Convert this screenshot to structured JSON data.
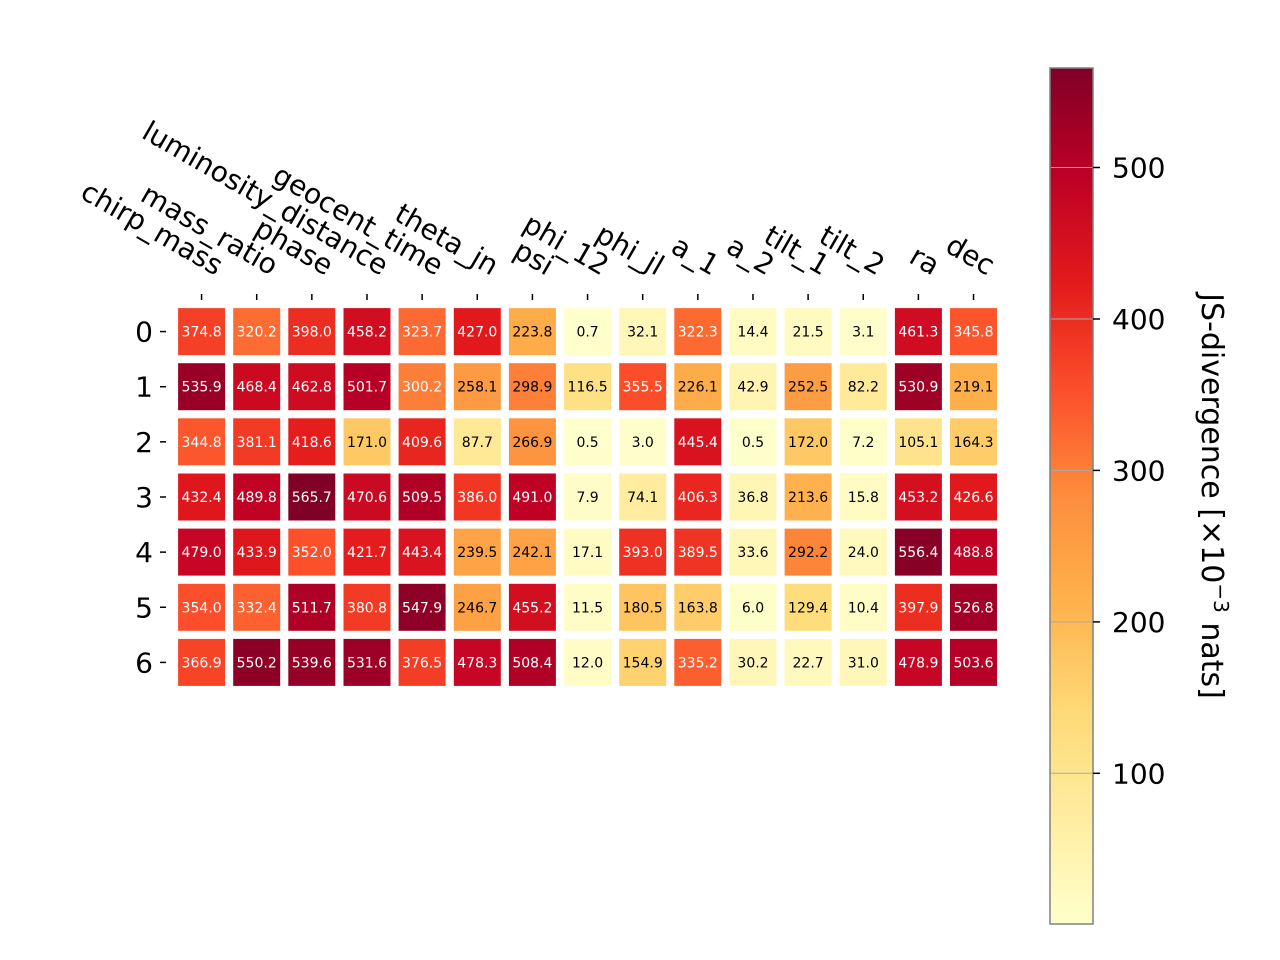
{
  "chart_data": {
    "type": "heatmap",
    "columns": [
      "chirp_mass",
      "mass_ratio",
      "phase",
      "luminosity_distance",
      "geocent_time",
      "theta_jn",
      "psi",
      "phi_12",
      "phi_jl",
      "a_1",
      "a_2",
      "tilt_1",
      "tilt_2",
      "ra",
      "dec"
    ],
    "rows": [
      "0",
      "1",
      "2",
      "3",
      "4",
      "5",
      "6"
    ],
    "values": [
      [
        374.8,
        320.2,
        398.0,
        458.2,
        323.7,
        427.0,
        223.8,
        0.7,
        32.1,
        322.3,
        14.4,
        21.5,
        3.1,
        461.3,
        345.8
      ],
      [
        535.9,
        468.4,
        462.8,
        501.7,
        300.2,
        258.1,
        298.9,
        116.5,
        355.5,
        226.1,
        42.9,
        252.5,
        82.2,
        530.9,
        219.1
      ],
      [
        344.8,
        381.1,
        418.6,
        171.0,
        409.6,
        87.7,
        266.9,
        0.5,
        3.0,
        445.4,
        0.5,
        172.0,
        7.2,
        105.1,
        164.3
      ],
      [
        432.4,
        489.8,
        565.7,
        470.6,
        509.5,
        386.0,
        491.0,
        7.9,
        74.1,
        406.3,
        36.8,
        213.6,
        15.8,
        453.2,
        426.6
      ],
      [
        479.0,
        433.9,
        352.0,
        421.7,
        443.4,
        239.5,
        242.1,
        17.1,
        393.0,
        389.5,
        33.6,
        292.2,
        24.0,
        556.4,
        488.8
      ],
      [
        354.0,
        332.4,
        511.7,
        380.8,
        547.9,
        246.7,
        455.2,
        11.5,
        180.5,
        163.8,
        6.0,
        129.4,
        10.4,
        397.9,
        526.8
      ],
      [
        366.9,
        550.2,
        539.6,
        531.6,
        376.5,
        478.3,
        508.4,
        12.0,
        154.9,
        335.2,
        30.2,
        22.7,
        31.0,
        478.9,
        503.6
      ]
    ],
    "colorbar": {
      "label_main": "JS-divergence [×10",
      "label_exp": "−3",
      "label_tail": " nats]",
      "ticks": [
        100,
        200,
        300,
        400,
        500
      ],
      "tick_labels": [
        "100",
        "200",
        "300",
        "400",
        "500"
      ],
      "range": [
        0.5,
        565.7
      ],
      "colormap": "YlOrRd"
    },
    "grid": false,
    "colorbar_placement": "right"
  }
}
